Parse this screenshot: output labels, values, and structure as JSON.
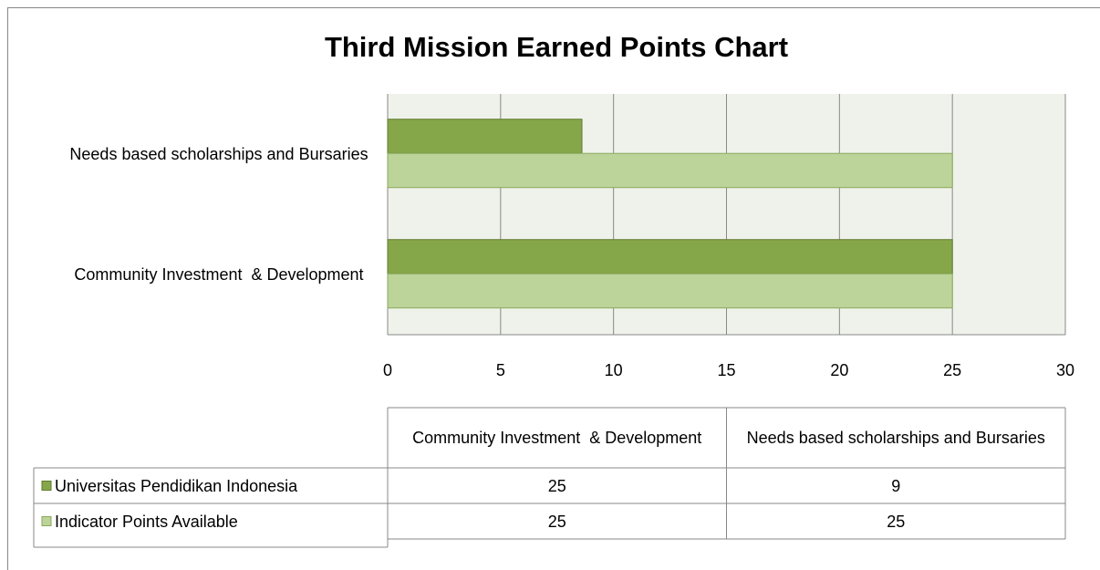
{
  "chart_data": {
    "type": "barh",
    "title": "Third Mission Earned Points Chart",
    "categories": [
      "Community Investment  & Development",
      "Needs based scholarships and Bursaries"
    ],
    "series": [
      {
        "name": "Universitas Pendidikan Indonesia",
        "color": "#86a64a",
        "values": [
          25,
          8.6
        ],
        "value_labels": [
          "25",
          "9"
        ]
      },
      {
        "name": "Indicator Points Available",
        "color": "#bcd39a",
        "values": [
          25,
          25
        ]
      }
    ],
    "xlim": [
      0,
      30
    ],
    "xticks": [
      0,
      5,
      10,
      15,
      20,
      25,
      30
    ],
    "grid": true,
    "data_table": true
  }
}
